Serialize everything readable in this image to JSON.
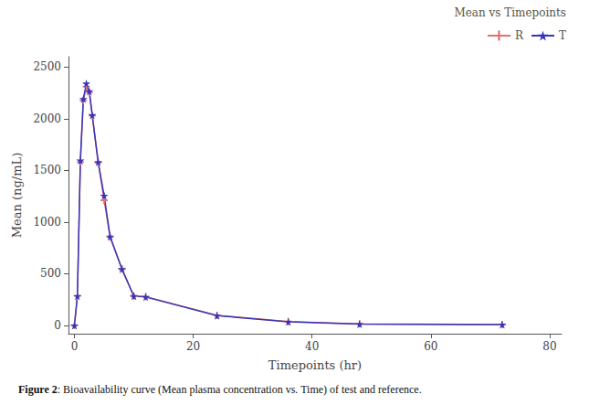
{
  "chart_data": {
    "type": "line",
    "xlabel": "Timepoints (hr)",
    "ylabel": "Mean (ng/mL)",
    "xlim": [
      -1,
      82
    ],
    "ylim": [
      -80,
      2600
    ],
    "xticks": [
      0,
      20,
      40,
      60,
      80
    ],
    "yticks": [
      0,
      500,
      1000,
      1500,
      2000,
      2500
    ],
    "grid": false,
    "legend": "upper right",
    "legend_title": "Mean vs Timepoints",
    "annotations": [
      "Figure 2",
      ": Bioavailability curve (Mean plasma concentration vs. Time) of test and reference."
    ],
    "series": [
      {
        "name": "R",
        "color": "#e07070",
        "marker": "plus",
        "x": [
          0,
          0.5,
          1,
          1.5,
          2,
          2.5,
          3,
          4,
          5,
          6,
          8,
          10,
          12,
          24,
          36,
          48,
          72
        ],
        "values": [
          0,
          285,
          1580,
          2175,
          2310,
          2255,
          2030,
          1575,
          1210,
          855,
          545,
          280,
          278,
          98,
          38,
          14,
          9
        ]
      },
      {
        "name": "T",
        "color": "#3535bb",
        "marker": "star",
        "x": [
          0,
          0.5,
          1,
          1.5,
          2,
          2.5,
          3,
          4,
          5,
          6,
          8,
          10,
          12,
          24,
          36,
          48,
          72
        ],
        "values": [
          0,
          285,
          1595,
          2190,
          2340,
          2265,
          2035,
          1580,
          1255,
          860,
          545,
          285,
          275,
          95,
          35,
          12,
          8
        ]
      }
    ]
  }
}
